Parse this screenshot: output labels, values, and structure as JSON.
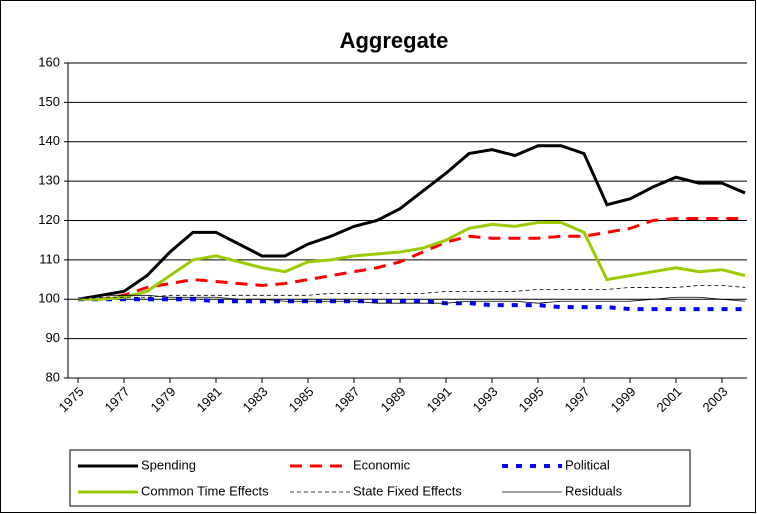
{
  "chart_data": {
    "type": "line",
    "title": "Aggregate",
    "x": [
      1975,
      1976,
      1977,
      1978,
      1979,
      1980,
      1981,
      1982,
      1983,
      1984,
      1985,
      1986,
      1987,
      1988,
      1989,
      1990,
      1991,
      1992,
      1993,
      1994,
      1995,
      1996,
      1997,
      1998,
      1999,
      2000,
      2001,
      2002,
      2003,
      2004
    ],
    "xlim": [
      1975,
      2004
    ],
    "xticks": [
      1975,
      1977,
      1979,
      1981,
      1983,
      1985,
      1987,
      1989,
      1991,
      1993,
      1995,
      1997,
      1999,
      2001,
      2003
    ],
    "ylim": [
      80,
      160
    ],
    "yticks": [
      80,
      90,
      100,
      110,
      120,
      130,
      140,
      150,
      160
    ],
    "grid": true,
    "series": [
      {
        "name": "Spending",
        "color": "#000000",
        "style": "thick",
        "values": [
          100,
          101,
          102,
          106,
          112,
          117,
          117,
          114,
          111,
          111,
          114,
          116,
          118.5,
          120,
          123,
          127.5,
          132,
          137,
          138,
          136.5,
          139,
          139,
          137,
          124,
          125.5,
          128.5,
          131,
          129.5,
          129.5,
          127
        ]
      },
      {
        "name": "Economic",
        "color": "#ff0000",
        "style": "dashed",
        "values": [
          100,
          100,
          101,
          103,
          104,
          105,
          104.5,
          104,
          103.5,
          104,
          105,
          106,
          107,
          108,
          109.5,
          112,
          114.5,
          116,
          115.5,
          115.5,
          115.5,
          116,
          116,
          117,
          118,
          120,
          120.5,
          120.5,
          120.5,
          120.5
        ]
      },
      {
        "name": "Political",
        "color": "#0000ff",
        "style": "dotted",
        "values": [
          100,
          100,
          100,
          100,
          100,
          100,
          99.5,
          99.5,
          99.5,
          99.5,
          99.5,
          99.5,
          99.5,
          99.5,
          99.5,
          99.5,
          99,
          99,
          98.5,
          98.5,
          98.5,
          98,
          98,
          98,
          97.5,
          97.5,
          97.5,
          97.5,
          97.5,
          97.5
        ]
      },
      {
        "name": "Common Time Effects",
        "color": "#99cc00",
        "style": "thick",
        "values": [
          100,
          100,
          100.5,
          102,
          106,
          110,
          111,
          109.5,
          108,
          107,
          109.5,
          110,
          111,
          111.5,
          112,
          113,
          115,
          118,
          119,
          118.5,
          119.5,
          119.5,
          117,
          105,
          106,
          107,
          108,
          107,
          107.5,
          106
        ]
      },
      {
        "name": "State Fixed Effects",
        "color": "#000000",
        "style": "thin-dashed",
        "values": [
          100,
          100.5,
          100.5,
          100.5,
          101,
          101,
          101,
          101,
          101,
          101,
          101,
          101.5,
          101.5,
          101.5,
          101.5,
          101.5,
          102,
          102,
          102,
          102,
          102.5,
          102.5,
          102.5,
          102.5,
          103,
          103,
          103,
          103.5,
          103.5,
          103
        ]
      },
      {
        "name": "Residuals",
        "color": "#000000",
        "style": "thin",
        "values": [
          100,
          101,
          101,
          101,
          100.5,
          100.5,
          100.5,
          100,
          100,
          99.5,
          99.5,
          99.5,
          99.5,
          99,
          99,
          99,
          99,
          99.5,
          99.5,
          99.5,
          99,
          99.5,
          99.5,
          99.5,
          99.5,
          100,
          100.5,
          100.5,
          100,
          99.5
        ]
      }
    ]
  }
}
